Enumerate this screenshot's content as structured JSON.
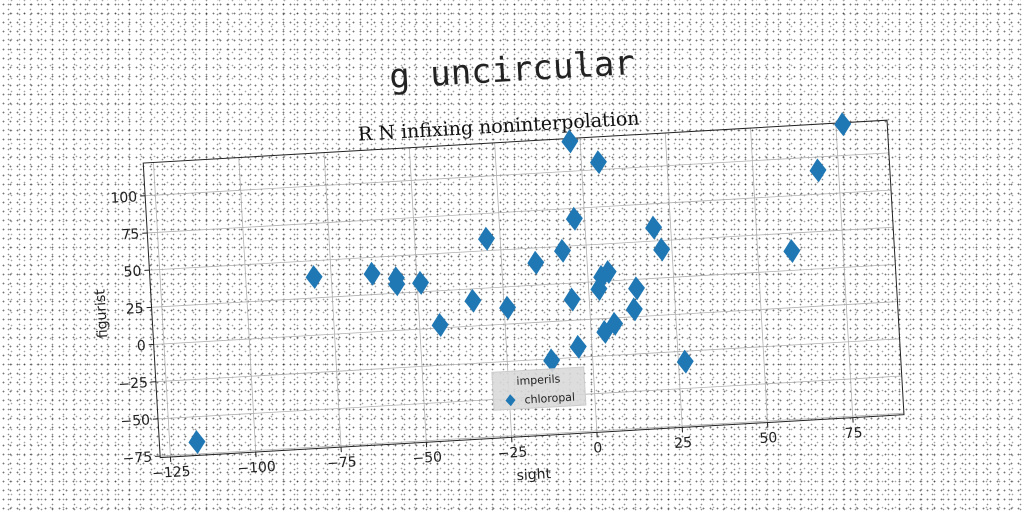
{
  "figure": {
    "suptitle": "g uncircular"
  },
  "chart_data": {
    "type": "scatter",
    "title": "R N infixing noninterpolation",
    "xlabel": "sight",
    "ylabel": "figurist",
    "xlim": [
      -128,
      90
    ],
    "ylim": [
      -76,
      122
    ],
    "xticks": [
      -125,
      -100,
      -75,
      -50,
      -25,
      0,
      25,
      50,
      75
    ],
    "xtick_labels": [
      "−125",
      "−100",
      "−75",
      "−50",
      "−25",
      "0",
      "25",
      "50",
      "75"
    ],
    "yticks": [
      -75,
      -50,
      -25,
      0,
      25,
      50,
      75,
      100
    ],
    "ytick_labels": [
      "−75",
      "−50",
      "−25",
      "0",
      "25",
      "50",
      "75",
      "100"
    ],
    "grid": true,
    "marker": "diamond",
    "series_color": "#1f77b4",
    "legend": {
      "title": "imperils",
      "placement": "lower-center",
      "entries": [
        "chloropal"
      ]
    },
    "series": [
      {
        "name": "chloropal",
        "points": [
          [
            -117,
            -67
          ],
          [
            -80,
            39
          ],
          [
            -63,
            39
          ],
          [
            -56,
            35
          ],
          [
            -56,
            31
          ],
          [
            -49,
            31
          ],
          [
            -44,
            2
          ],
          [
            -34,
            17
          ],
          [
            -29,
            58
          ],
          [
            -24,
            11
          ],
          [
            -15,
            40
          ],
          [
            -12,
            -26
          ],
          [
            -7,
            47
          ],
          [
            -5,
            14
          ],
          [
            -4,
            -18
          ],
          [
            -3,
            68
          ],
          [
            -3,
            120
          ],
          [
            3,
            20
          ],
          [
            4,
            28
          ],
          [
            4,
            -9
          ],
          [
            5,
            105
          ],
          [
            6,
            31
          ],
          [
            7,
            -4
          ],
          [
            13,
            5
          ],
          [
            14,
            19
          ],
          [
            20,
            59
          ],
          [
            22,
            44
          ],
          [
            27,
            -32
          ],
          [
            60,
            38
          ],
          [
            69,
            91
          ],
          [
            77,
            121
          ]
        ]
      }
    ]
  }
}
